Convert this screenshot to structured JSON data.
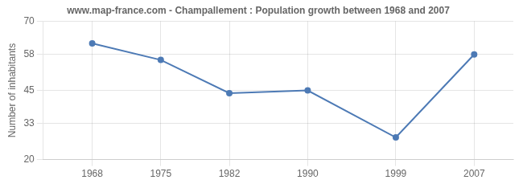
{
  "chart_data": {
    "type": "line",
    "title": "www.map-france.com - Champallement : Population growth between 1968 and 2007",
    "ylabel": "Number of inhabitants",
    "x": [
      1968,
      1975,
      1982,
      1990,
      1999,
      2007
    ],
    "values": [
      62,
      56,
      44,
      45,
      28,
      58
    ],
    "color": "#4d7ab5",
    "marker": "circle",
    "xlim": [
      1963,
      2011
    ],
    "xticks": [
      1968,
      1975,
      1982,
      1990,
      1999,
      2007
    ],
    "ylim": [
      20,
      70
    ],
    "yticks": [
      20,
      33,
      45,
      58,
      70
    ],
    "grid": true
  }
}
